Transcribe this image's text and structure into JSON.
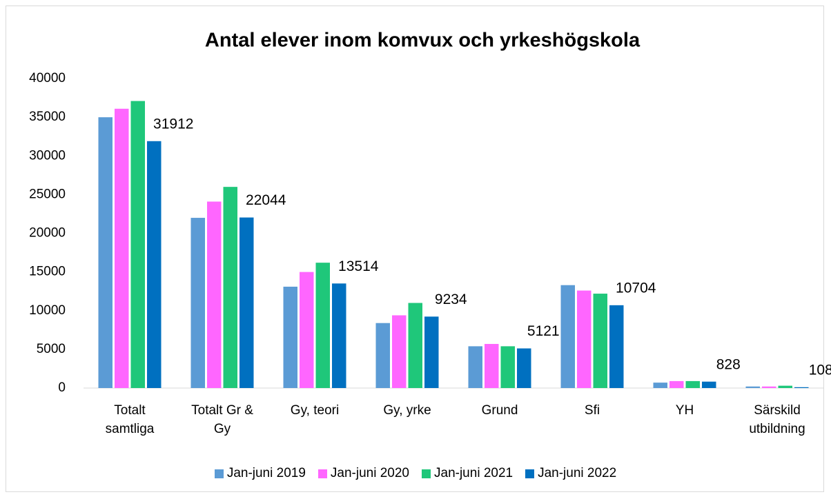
{
  "chart_data": {
    "type": "bar",
    "title": "Antal elever inom komvux och yrkeshögskola",
    "categories": [
      "Totalt samtliga",
      "Totalt Gr & Gy",
      "Gy, teori",
      "Gy, yrke",
      "Grund",
      "Sfi",
      "YH",
      "Särskild utbildning"
    ],
    "series": [
      {
        "name": "Jan-juni 2019",
        "color": "#5b9bd5",
        "values": [
          35000,
          22000,
          13100,
          8400,
          5400,
          13300,
          700,
          200
        ]
      },
      {
        "name": "Jan-juni 2020",
        "color": "#ff66ff",
        "values": [
          36100,
          24100,
          15000,
          9400,
          5700,
          12600,
          900,
          200
        ]
      },
      {
        "name": "Jan-juni 2021",
        "color": "#1fc77a",
        "values": [
          37100,
          26000,
          16200,
          11000,
          5400,
          12200,
          900,
          300
        ]
      },
      {
        "name": "Jan-juni 2022",
        "color": "#0070c0",
        "values": [
          31912,
          22044,
          13514,
          9234,
          5121,
          10704,
          828,
          108
        ],
        "show_labels": true
      }
    ],
    "ylim": [
      0,
      40000
    ],
    "yticks": [
      0,
      5000,
      10000,
      15000,
      20000,
      25000,
      30000,
      35000,
      40000
    ],
    "grid": false,
    "legend": "bottom"
  }
}
